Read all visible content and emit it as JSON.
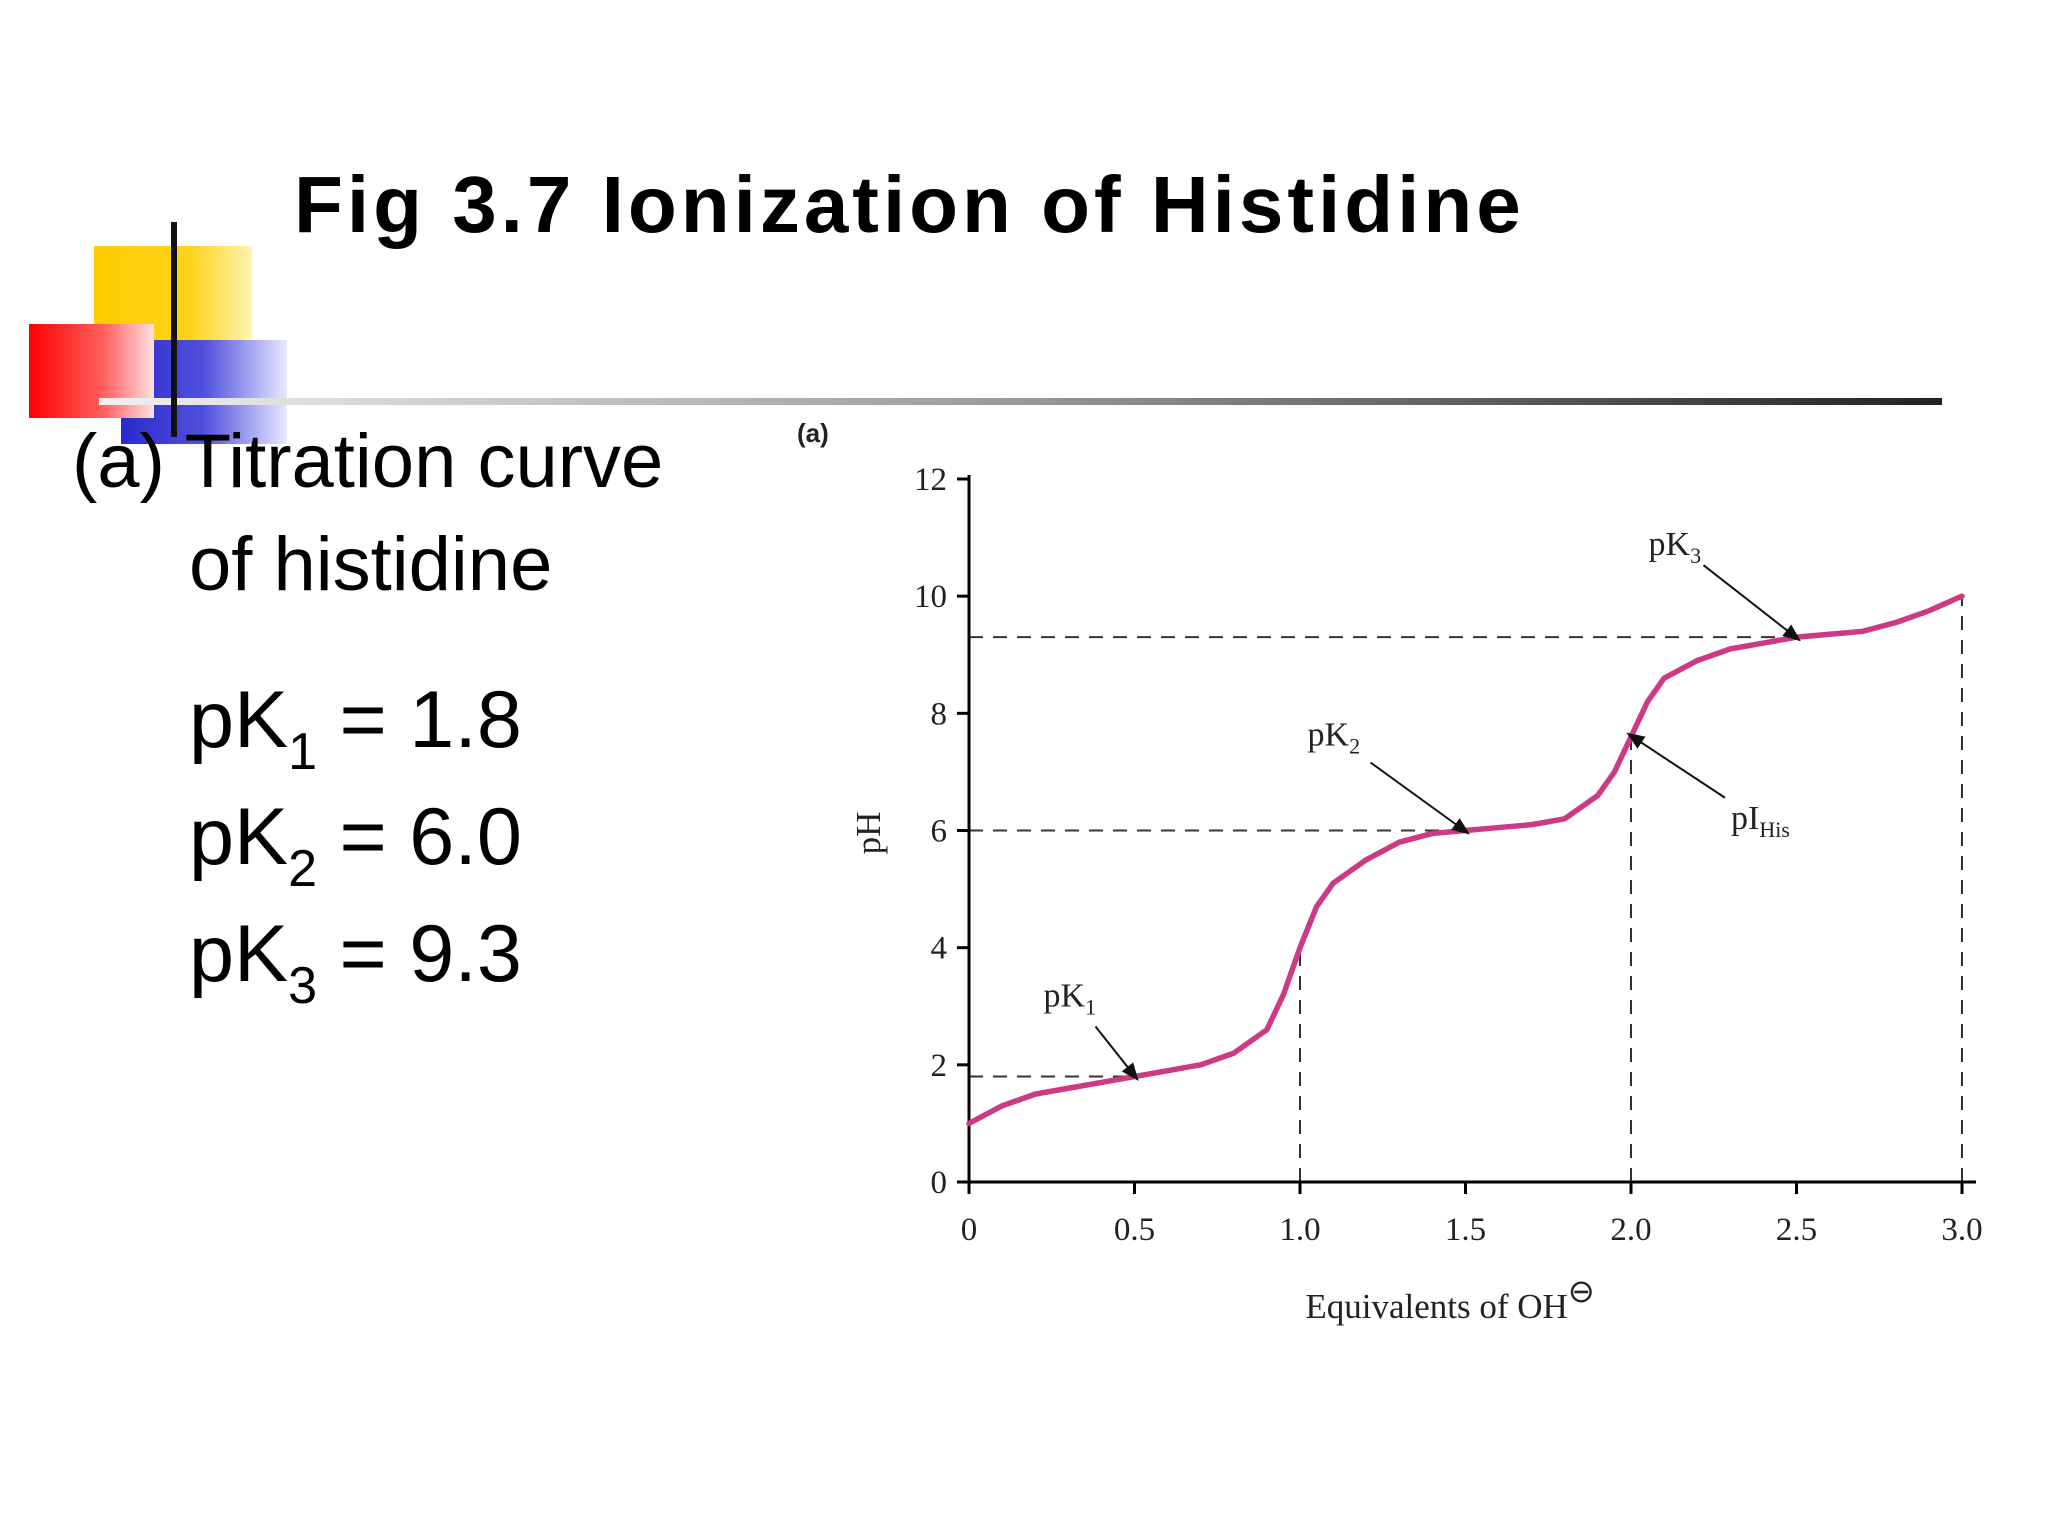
{
  "slide": {
    "title": "Fig 3.7 Ionization of Histidine",
    "caption": [
      "(a) Titration curve",
      "of histidine"
    ],
    "pk_lines": [
      {
        "label": "pK",
        "sub": "1",
        "rest": " = 1.8"
      },
      {
        "label": "pK",
        "sub": "2",
        "rest": " = 6.0"
      },
      {
        "label": "pK",
        "sub": "3",
        "rest": " = 9.3"
      }
    ]
  },
  "chart_data": {
    "type": "line",
    "panel_label": "(a)",
    "x_label": "Equivalents of OH",
    "x_label_sup": "⊖",
    "y_label": "pH",
    "x": [
      0,
      0.1,
      0.2,
      0.3,
      0.4,
      0.5,
      0.6,
      0.7,
      0.8,
      0.9,
      0.95,
      1.0,
      1.05,
      1.1,
      1.2,
      1.3,
      1.4,
      1.5,
      1.6,
      1.7,
      1.8,
      1.9,
      1.95,
      2.0,
      2.05,
      2.1,
      2.2,
      2.3,
      2.4,
      2.5,
      2.6,
      2.7,
      2.8,
      2.9,
      3.0
    ],
    "series": [
      {
        "color": "#cc3a84",
        "values": [
          1.0,
          1.3,
          1.5,
          1.6,
          1.7,
          1.8,
          1.9,
          2.0,
          2.2,
          2.6,
          3.2,
          4.0,
          4.7,
          5.1,
          5.5,
          5.8,
          5.95,
          6.0,
          6.05,
          6.1,
          6.2,
          6.6,
          7.0,
          7.6,
          8.2,
          8.6,
          8.9,
          9.1,
          9.2,
          9.3,
          9.35,
          9.4,
          9.55,
          9.75,
          10.0
        ]
      }
    ],
    "xlim": [
      0,
      3
    ],
    "ylim": [
      0,
      12
    ],
    "xticks": [
      0,
      0.5,
      {
        "value": 1,
        "label": "1.0"
      },
      1.5,
      {
        "value": 2,
        "label": "2.0"
      },
      2.5,
      {
        "value": 3,
        "label": "3.0"
      }
    ],
    "yticks": [
      0,
      2,
      4,
      6,
      8,
      10,
      12
    ],
    "h_guides": [
      {
        "x": 0.5,
        "y": 1.8
      },
      {
        "x": 1.5,
        "y": 6.0
      },
      {
        "x": 2.5,
        "y": 9.3
      }
    ],
    "v_guides": [
      1,
      2,
      3
    ],
    "annotations": [
      {
        "text": "pK",
        "sub": "1",
        "x": 0.5,
        "y": 1.8
      },
      {
        "text": "pK",
        "sub": "2",
        "x": 1.5,
        "y": 6.0
      },
      {
        "text": "pK",
        "sub": "3",
        "x": 2.5,
        "y": 9.3
      },
      {
        "text": "pI",
        "sub": "His",
        "x": 2.0,
        "y": 7.6
      }
    ]
  }
}
